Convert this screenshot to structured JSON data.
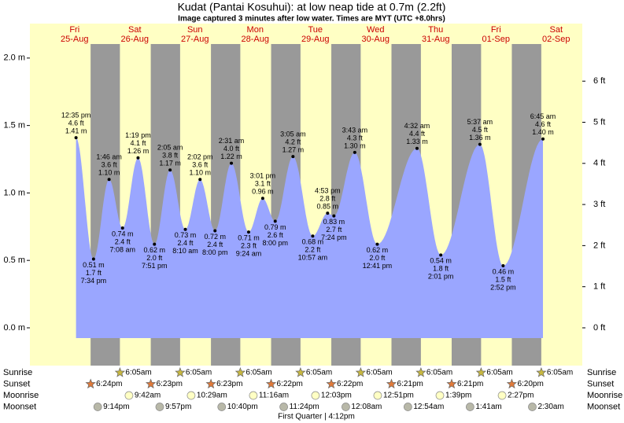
{
  "chart_data": {
    "type": "tide",
    "title": "Kudat (Pantai Kosuhui): at low   neap tide at 0.7m (2.2ft)",
    "subtitle": "Image captured 3 minutes after low water. Times are MYT (UTC +8.0hrs)",
    "ylim": [
      -0.28,
      2.104
    ],
    "yticks": [
      {
        "value": 0.0,
        "label": "0.0 m"
      },
      {
        "value": 0.5,
        "label": "0.5 m"
      },
      {
        "value": 1.0,
        "label": "1.0 m"
      },
      {
        "value": 1.5,
        "label": "1.5 m"
      },
      {
        "value": 2.0,
        "label": "2.0 m"
      }
    ],
    "y2lim": [
      -0.9186,
      6.9029
    ],
    "y2ticks": [
      {
        "value": 0,
        "label": "0 ft"
      },
      {
        "value": 1,
        "label": "1 ft"
      },
      {
        "value": 2,
        "label": "2 ft"
      },
      {
        "value": 3,
        "label": "3 ft"
      },
      {
        "value": 4,
        "label": "4 ft"
      },
      {
        "value": 5,
        "label": "5 ft"
      },
      {
        "value": 6,
        "label": "6 ft"
      }
    ],
    "area_color": "#9aa6ff",
    "day_color": "#ffffc4",
    "night_color": "#999999",
    "row_labels": [
      "Sunrise",
      "Sunset",
      "Moonrise",
      "Moonset"
    ],
    "moon_phase": "First Quarter | 4:12pm",
    "days": [
      {
        "weekday": "Fri",
        "date": "25-Aug",
        "tides": [
          {
            "time": "12:35 pm",
            "ft_label": "4.6 ft",
            "height": 1.41,
            "height_label": "1.41 m"
          },
          {
            "time": "7:34 pm",
            "ft_label": "1.7 ft",
            "height": 0.51,
            "height_label": "0.51 m"
          }
        ],
        "sunset": "6:24pm",
        "moonset": "9:14pm"
      },
      {
        "weekday": "Sat",
        "date": "26-Aug",
        "tides": [
          {
            "time": "1:46 am",
            "ft_label": "3.6 ft",
            "height": 1.1,
            "height_label": "1.10 m"
          },
          {
            "time": "7:08 am",
            "ft_label": "2.4 ft",
            "height": 0.74,
            "height_label": "0.74 m"
          },
          {
            "time": "1:19 pm",
            "ft_label": "4.1 ft",
            "height": 1.26,
            "height_label": "1.26 m"
          },
          {
            "time": "7:51 pm",
            "ft_label": "2.0 ft",
            "height": 0.62,
            "height_label": "0.62 m"
          }
        ],
        "sunrise": "6:05am",
        "sunset": "6:23pm",
        "moonrise": "9:42am",
        "moonset": "9:57pm"
      },
      {
        "weekday": "Sun",
        "date": "27-Aug",
        "tides": [
          {
            "time": "2:05 am",
            "ft_label": "3.8 ft",
            "height": 1.17,
            "height_label": "1.17 m"
          },
          {
            "time": "8:10 am",
            "ft_label": "2.4 ft",
            "height": 0.73,
            "height_label": "0.73 m"
          },
          {
            "time": "2:02 pm",
            "ft_label": "3.6 ft",
            "height": 1.1,
            "height_label": "1.10 m"
          },
          {
            "time": "8:00 pm",
            "ft_label": "2.4 ft",
            "height": 0.72,
            "height_label": "0.72 m"
          }
        ],
        "sunrise": "6:05am",
        "sunset": "6:23pm",
        "moonrise": "10:29am",
        "moonset": "10:40pm"
      },
      {
        "weekday": "Mon",
        "date": "28-Aug",
        "tides": [
          {
            "time": "2:31 am",
            "ft_label": "4.0 ft",
            "height": 1.22,
            "height_label": "1.22 m"
          },
          {
            "time": "9:24 am",
            "ft_label": "2.3 ft",
            "height": 0.71,
            "height_label": "0.71 m"
          },
          {
            "time": "3:01 pm",
            "ft_label": "3.1 ft",
            "height": 0.96,
            "height_label": "0.96 m"
          },
          {
            "time": "8:00 pm",
            "ft_label": "2.6 ft",
            "height": 0.79,
            "height_label": "0.79 m"
          }
        ],
        "sunrise": "6:05am",
        "sunset": "6:22pm",
        "moonrise": "11:16am",
        "moonset": "11:24pm"
      },
      {
        "weekday": "Tue",
        "date": "29-Aug",
        "tides": [
          {
            "time": "3:05 am",
            "ft_label": "4.2 ft",
            "height": 1.27,
            "height_label": "1.27 m"
          },
          {
            "time": "10:57 am",
            "ft_label": "2.2 ft",
            "height": 0.68,
            "height_label": "0.68 m"
          },
          {
            "time": "4:53 pm",
            "ft_label": "2.8 ft",
            "height": 0.85,
            "height_label": "0.85 m"
          },
          {
            "time": "7:24 pm",
            "ft_label": "2.7 ft",
            "height": 0.83,
            "height_label": "0.83 m"
          }
        ],
        "sunrise": "6:05am",
        "sunset": "6:22pm",
        "moonrise": "12:03pm"
      },
      {
        "weekday": "Wed",
        "date": "30-Aug",
        "tides": [
          {
            "time": "3:43 am",
            "ft_label": "4.3 ft",
            "height": 1.3,
            "height_label": "1.30 m"
          },
          {
            "time": "12:41 pm",
            "ft_label": "2.0 ft",
            "height": 0.62,
            "height_label": "0.62 m"
          }
        ],
        "sunrise": "6:05am",
        "sunset": "6:21pm",
        "moonrise": "12:51pm",
        "moonset": "12:08am"
      },
      {
        "weekday": "Thu",
        "date": "31-Aug",
        "tides": [
          {
            "time": "4:32 am",
            "ft_label": "4.4 ft",
            "height": 1.33,
            "height_label": "1.33 m"
          },
          {
            "time": "2:01 pm",
            "ft_label": "1.8 ft",
            "height": 0.54,
            "height_label": "0.54 m"
          }
        ],
        "sunrise": "6:05am",
        "sunset": "6:21pm",
        "moonrise": "1:39pm",
        "moonset": "12:54am"
      },
      {
        "weekday": "Fri",
        "date": "01-Sep",
        "tides": [
          {
            "time": "5:37 am",
            "ft_label": "4.5 ft",
            "height": 1.36,
            "height_label": "1.36 m"
          },
          {
            "time": "2:52 pm",
            "ft_label": "1.5 ft",
            "height": 0.46,
            "height_label": "0.46 m"
          }
        ],
        "sunrise": "6:05am",
        "sunset": "6:20pm",
        "moonrise": "2:27pm",
        "moonset": "1:41am"
      },
      {
        "weekday": "Sat",
        "date": "02-Sep",
        "tides": [
          {
            "time": "6:45 am",
            "ft_label": "4.6 ft",
            "height": 1.4,
            "height_label": "1.40 m"
          }
        ],
        "sunrise": "6:05am",
        "moonset": "2:30am"
      }
    ]
  }
}
